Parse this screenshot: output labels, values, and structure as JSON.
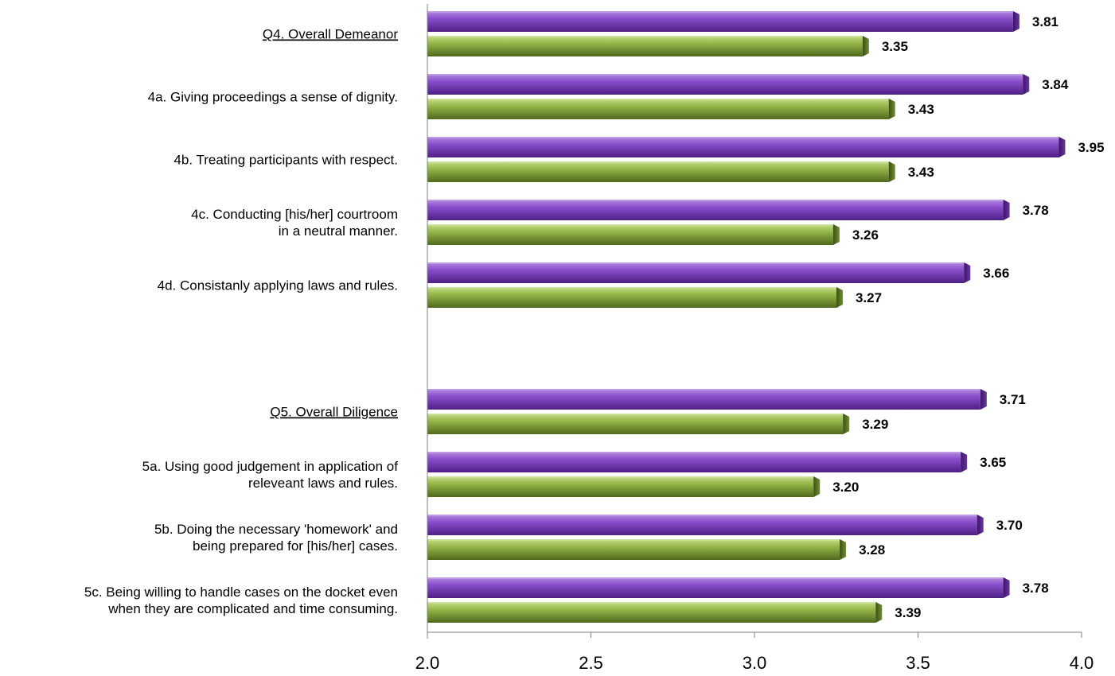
{
  "chart_data": {
    "type": "bar",
    "orientation": "horizontal",
    "xlim": [
      2.0,
      4.0
    ],
    "xticks": [
      "2.0",
      "2.5",
      "3.0",
      "3.5",
      "4.0"
    ],
    "colors": {
      "series_1": "#7a3fb8",
      "series_2": "#8aaa3e"
    },
    "categories": [
      {
        "lines": [
          "Q4. Overall Demeanor"
        ],
        "underline": true,
        "values": [
          3.81,
          3.35
        ],
        "labels": [
          "3.81",
          "3.35"
        ]
      },
      {
        "lines": [
          "4a. Giving proceedings a sense of dignity."
        ],
        "underline": false,
        "values": [
          3.84,
          3.43
        ],
        "labels": [
          "3.84",
          "3.43"
        ]
      },
      {
        "lines": [
          "4b. Treating participants with respect."
        ],
        "underline": false,
        "values": [
          3.95,
          3.43
        ],
        "labels": [
          "3.95",
          "3.43"
        ]
      },
      {
        "lines": [
          "4c. Conducting [his/her] courtroom",
          "in a neutral manner."
        ],
        "underline": false,
        "values": [
          3.78,
          3.26
        ],
        "labels": [
          "3.78",
          "3.26"
        ]
      },
      {
        "lines": [
          "4d. Consistanly applying laws and rules."
        ],
        "underline": false,
        "values": [
          3.66,
          3.27
        ],
        "labels": [
          "3.66",
          "3.27"
        ]
      },
      {
        "lines": [
          "Q5.  Overall Diligence"
        ],
        "underline": true,
        "values": [
          3.71,
          3.29
        ],
        "labels": [
          "3.71",
          "3.29"
        ]
      },
      {
        "lines": [
          "5a. Using good judgement in application of",
          "releveant laws and rules."
        ],
        "underline": false,
        "values": [
          3.65,
          3.2
        ],
        "labels": [
          "3.65",
          "3.20"
        ]
      },
      {
        "lines": [
          "5b. Doing the necessary 'homework' and",
          "being prepared for [his/her] cases."
        ],
        "underline": false,
        "values": [
          3.7,
          3.28
        ],
        "labels": [
          "3.70",
          "3.28"
        ]
      },
      {
        "lines": [
          "5c. Being willing to handle cases on the docket even",
          "when they are complicated and time consuming."
        ],
        "underline": false,
        "values": [
          3.78,
          3.39
        ],
        "labels": [
          "3.78",
          "3.39"
        ]
      }
    ]
  }
}
